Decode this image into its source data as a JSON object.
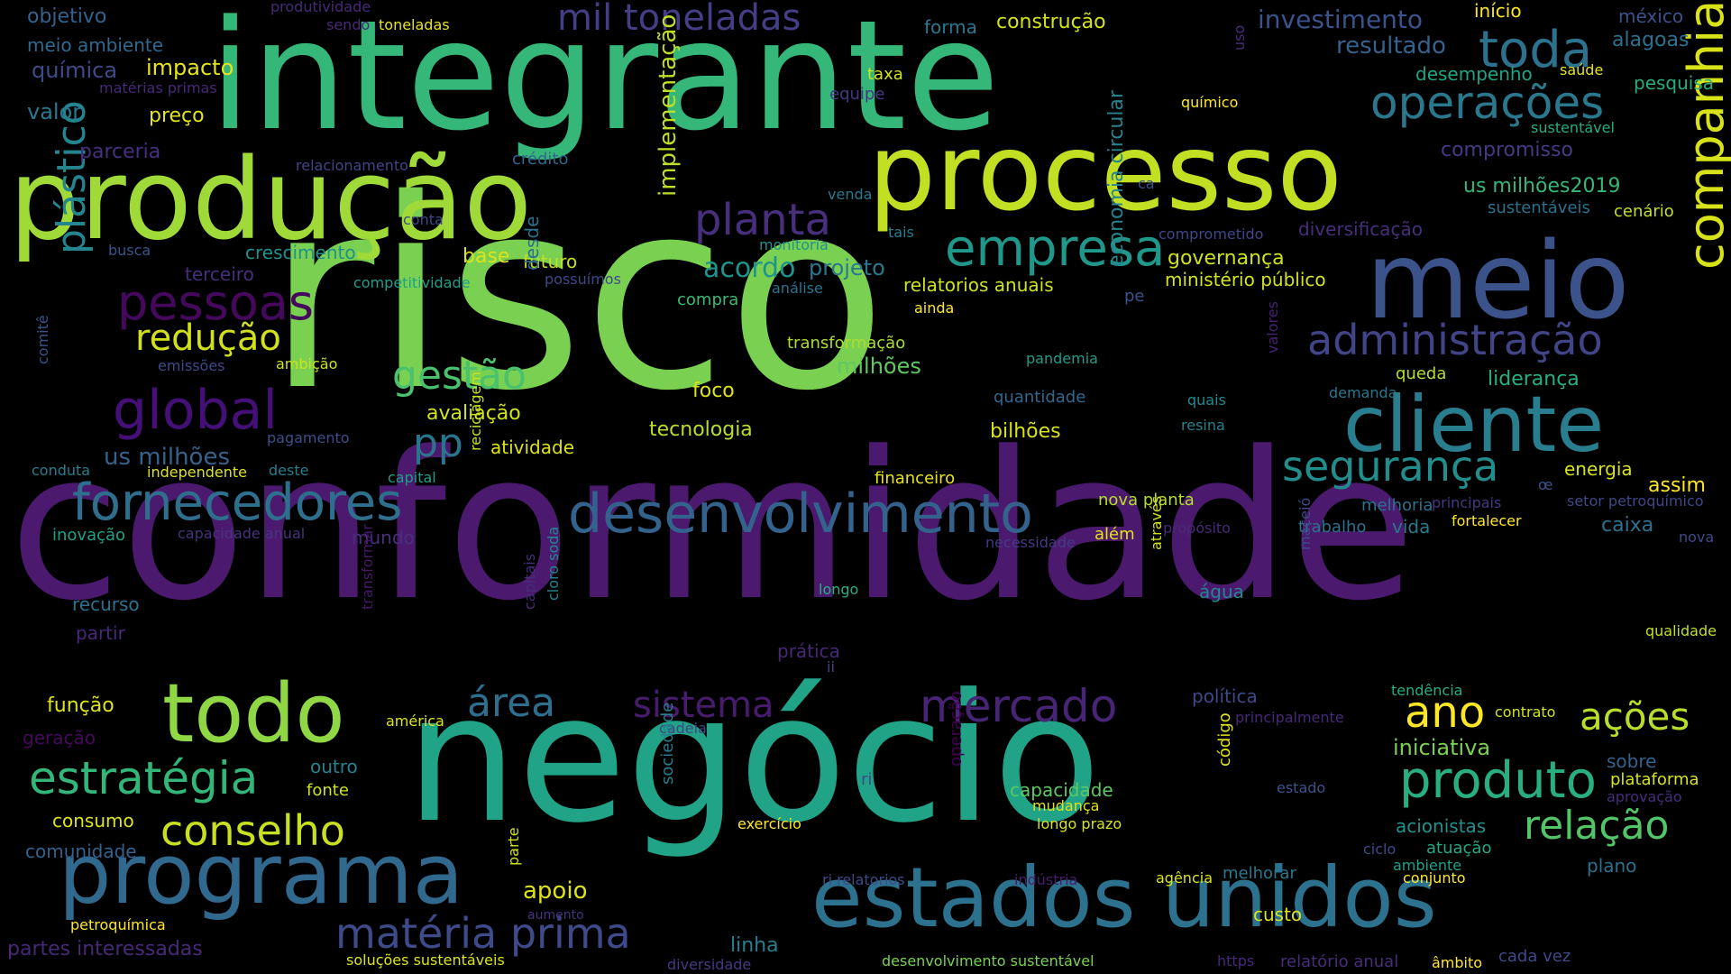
{
  "background": "#000000",
  "palette": [
    "#440154",
    "#482878",
    "#3e4989",
    "#31688e",
    "#26828e",
    "#1f9e89",
    "#35b779",
    "#6ece58",
    "#b5de2b",
    "#fde725"
  ],
  "words": [
    {
      "text": "conformidade",
      "color": "#4b1a6e"
    },
    {
      "text": "risco",
      "color": "#7ad151"
    },
    {
      "text": "negócio",
      "color": "#20a386"
    },
    {
      "text": "integrante",
      "color": "#35b779"
    },
    {
      "text": "produção",
      "color": "#a0da39"
    },
    {
      "text": "processo",
      "color": "#c2df23"
    },
    {
      "text": "estados unidos",
      "color": "#2c728e"
    },
    {
      "text": "meio",
      "color": "#3b528b"
    },
    {
      "text": "programa",
      "color": "#31688e"
    },
    {
      "text": "cliente",
      "color": "#287d8e"
    },
    {
      "text": "todo",
      "color": "#8fd744"
    },
    {
      "text": "desenvolvimento",
      "color": "#33638d"
    },
    {
      "text": "empresa",
      "color": "#1f988b"
    },
    {
      "text": "companhia",
      "color": "#d8e219"
    },
    {
      "text": "fornecedores",
      "color": "#2e6f8e"
    },
    {
      "text": "mercado",
      "color": "#482475"
    },
    {
      "text": "produto",
      "color": "#29af7f"
    },
    {
      "text": "estratégia",
      "color": "#32b67a"
    },
    {
      "text": "conselho",
      "color": "#c8e020"
    },
    {
      "text": "matéria prima",
      "color": "#3e4a89"
    },
    {
      "text": "operações",
      "color": "#2a788e"
    },
    {
      "text": "administração",
      "color": "#414487"
    },
    {
      "text": "segurança",
      "color": "#228d8d"
    },
    {
      "text": "global",
      "color": "#440f76"
    },
    {
      "text": "pessoas",
      "color": "#46085c"
    },
    {
      "text": "toda",
      "color": "#2c728e"
    },
    {
      "text": "planta",
      "color": "#472f7d"
    },
    {
      "text": "mil toneladas",
      "color": "#433e85"
    },
    {
      "text": "plástico",
      "color": "#25858e"
    },
    {
      "text": "redução",
      "color": "#d0e11c"
    },
    {
      "text": "gestão",
      "color": "#4ac16d"
    },
    {
      "text": "sistema",
      "color": "#481b6d"
    },
    {
      "text": "área",
      "color": "#2e6e8e"
    },
    {
      "text": "ano",
      "color": "#fde725"
    },
    {
      "text": "ações",
      "color": "#b8de29"
    },
    {
      "text": "relação",
      "color": "#52c569"
    },
    {
      "text": "pp",
      "color": "#2b748e"
    },
    {
      "text": "investimento",
      "color": "#3b528b"
    },
    {
      "text": "acordo",
      "color": "#1f948c"
    },
    {
      "text": "projeto",
      "color": "#2a788e"
    },
    {
      "text": "implementação",
      "color": "#bddf26"
    },
    {
      "text": "resultado",
      "color": "#34618d"
    },
    {
      "text": "apoio",
      "color": "#dde318"
    },
    {
      "text": "linha",
      "color": "#287d8e"
    },
    {
      "text": "iniciativa",
      "color": "#7ad151"
    },
    {
      "text": "objetivo",
      "color": "#33638d"
    },
    {
      "text": "meio ambiente",
      "color": "#31688e"
    },
    {
      "text": "química",
      "color": "#3e4a89"
    },
    {
      "text": "valor",
      "color": "#2a778e"
    },
    {
      "text": "impacto",
      "color": "#e5e419"
    },
    {
      "text": "preço",
      "color": "#e2e418"
    },
    {
      "text": "matérias primas",
      "color": "#482878"
    },
    {
      "text": "produtividade",
      "color": "#482979"
    },
    {
      "text": "sendo",
      "color": "#482878"
    },
    {
      "text": "toneladas",
      "color": "#e7e419"
    },
    {
      "text": "forma",
      "color": "#2a778e"
    },
    {
      "text": "construção",
      "color": "#d5e21a"
    },
    {
      "text": "início",
      "color": "#fde725"
    },
    {
      "text": "méxico",
      "color": "#3b528b"
    },
    {
      "text": "alagoas",
      "color": "#2c718e"
    },
    {
      "text": "pesquisa",
      "color": "#29af7f"
    },
    {
      "text": "desempenho",
      "color": "#20a486"
    },
    {
      "text": "saúde",
      "color": "#e5e419"
    },
    {
      "text": "uso",
      "color": "#472d7b"
    },
    {
      "text": "taxa",
      "color": "#d2e21b"
    },
    {
      "text": "equipe",
      "color": "#443983"
    },
    {
      "text": "químico",
      "color": "#fde725"
    },
    {
      "text": "sustentável",
      "color": "#27ad81"
    },
    {
      "text": "compromisso",
      "color": "#443a83"
    },
    {
      "text": "parceria",
      "color": "#472f7d"
    },
    {
      "text": "relacionamento",
      "color": "#414487"
    },
    {
      "text": "crédito",
      "color": "#31688e"
    },
    {
      "text": "conta",
      "color": "#3e4a89"
    },
    {
      "text": "busca",
      "color": "#3a548c"
    },
    {
      "text": "crescimento",
      "color": "#21908d"
    },
    {
      "text": "terceiro",
      "color": "#472f7d"
    },
    {
      "text": "competitividade",
      "color": "#1f9e89"
    },
    {
      "text": "venda",
      "color": "#2a788e"
    },
    {
      "text": "ca",
      "color": "#3b528b"
    },
    {
      "text": "tais",
      "color": "#287d8e"
    },
    {
      "text": "monitoria",
      "color": "#21918c"
    },
    {
      "text": "comprometido",
      "color": "#3f4788"
    },
    {
      "text": "diversificação",
      "color": "#472d7b"
    },
    {
      "text": "us milhões2019",
      "color": "#35b779"
    },
    {
      "text": "sustentáveis",
      "color": "#2d708e"
    },
    {
      "text": "cenário",
      "color": "#c0df25"
    },
    {
      "text": "base",
      "color": "#dde318"
    },
    {
      "text": "futuro",
      "color": "#c2df23"
    },
    {
      "text": "possuímos",
      "color": "#3e4989"
    },
    {
      "text": "governança",
      "color": "#cde11d"
    },
    {
      "text": "ministério público",
      "color": "#d2e21b"
    },
    {
      "text": "compra",
      "color": "#3aba76"
    },
    {
      "text": "análise",
      "color": "#2c728e"
    },
    {
      "text": "relatorios anuais",
      "color": "#cde11d"
    },
    {
      "text": "ainda",
      "color": "#fde725"
    },
    {
      "text": "pe",
      "color": "#3b528b"
    },
    {
      "text": "desde",
      "color": "#2d708e"
    },
    {
      "text": "economia circular",
      "color": "#25848e"
    },
    {
      "text": "transformação",
      "color": "#addc30"
    },
    {
      "text": "pandemia",
      "color": "#1e9b8a"
    },
    {
      "text": "milhões",
      "color": "#5ec962"
    },
    {
      "text": "ambição",
      "color": "#cde11d"
    },
    {
      "text": "emissões",
      "color": "#3e4989"
    },
    {
      "text": "comitê",
      "color": "#3b528b"
    },
    {
      "text": "quantidade",
      "color": "#31688e"
    },
    {
      "text": "valores",
      "color": "#482173"
    },
    {
      "text": "quais",
      "color": "#23898e"
    },
    {
      "text": "demanda",
      "color": "#2a788e"
    },
    {
      "text": "queda",
      "color": "#b5de2b"
    },
    {
      "text": "liderança",
      "color": "#2ab07f"
    },
    {
      "text": "foco",
      "color": "#dde318"
    },
    {
      "text": "avaliação",
      "color": "#d2e21b"
    },
    {
      "text": "tecnologia",
      "color": "#b8de29"
    },
    {
      "text": "resina",
      "color": "#26828e"
    },
    {
      "text": "bilhões",
      "color": "#d8e219"
    },
    {
      "text": "us milhões",
      "color": "#33638d"
    },
    {
      "text": "pagamento",
      "color": "#3d4e8a"
    },
    {
      "text": "atividade",
      "color": "#dde318"
    },
    {
      "text": "independente",
      "color": "#dde318"
    },
    {
      "text": "deste",
      "color": "#287d8e"
    },
    {
      "text": "capital",
      "color": "#1fa088"
    },
    {
      "text": "conduta",
      "color": "#287d8e"
    },
    {
      "text": "reciclagem",
      "color": "#c8e020"
    },
    {
      "text": "financeiro",
      "color": "#e7e419"
    },
    {
      "text": "energia",
      "color": "#d8e219"
    },
    {
      "text": "assim",
      "color": "#fde725"
    },
    {
      "text": "œ",
      "color": "#3b528b"
    },
    {
      "text": "principais",
      "color": "#453781"
    },
    {
      "text": "setor petroquímico",
      "color": "#3f4788"
    },
    {
      "text": "melhoria",
      "color": "#2c728e"
    },
    {
      "text": "caixa",
      "color": "#2c728e"
    },
    {
      "text": "trabalho",
      "color": "#2c728e"
    },
    {
      "text": "vida",
      "color": "#2a788e"
    },
    {
      "text": "fortalecer",
      "color": "#fde725"
    },
    {
      "text": "nova planta",
      "color": "#b5de2b"
    },
    {
      "text": "além",
      "color": "#e2e418"
    },
    {
      "text": "propósito",
      "color": "#482878"
    },
    {
      "text": "nova",
      "color": "#3e4a89"
    },
    {
      "text": "necessidade",
      "color": "#443983"
    },
    {
      "text": "inovação",
      "color": "#1fa187"
    },
    {
      "text": "capacidade anual",
      "color": "#46327e"
    },
    {
      "text": "mundo",
      "color": "#472f7d"
    },
    {
      "text": "recurso",
      "color": "#2c718e"
    },
    {
      "text": "partir",
      "color": "#482878"
    },
    {
      "text": "longo",
      "color": "#29af7f"
    },
    {
      "text": "através",
      "color": "#d2e21b"
    },
    {
      "text": "água",
      "color": "#24868e"
    },
    {
      "text": "maceió",
      "color": "#3e4989"
    },
    {
      "text": "capitais",
      "color": "#472d7b"
    },
    {
      "text": "cloro soda",
      "color": "#24868e"
    },
    {
      "text": "transformar",
      "color": "#481769"
    },
    {
      "text": "prática",
      "color": "#482878"
    },
    {
      "text": "ii",
      "color": "#414487"
    },
    {
      "text": "qualidade",
      "color": "#c2df23"
    },
    {
      "text": "tendência",
      "color": "#26ad81"
    },
    {
      "text": "função",
      "color": "#dde318"
    },
    {
      "text": "américa",
      "color": "#dde318"
    },
    {
      "text": "cadeia",
      "color": "#414487"
    },
    {
      "text": "política",
      "color": "#3e4989"
    },
    {
      "text": "contrato",
      "color": "#d2e21b"
    },
    {
      "text": "geração",
      "color": "#46085c"
    },
    {
      "text": "principalmente",
      "color": "#482878"
    },
    {
      "text": "outro",
      "color": "#26828e"
    },
    {
      "text": "fonte",
      "color": "#cde11d"
    },
    {
      "text": "ri",
      "color": "#3e4989"
    },
    {
      "text": "operação",
      "color": "#440154"
    },
    {
      "text": "capacidade",
      "color": "#5ec962"
    },
    {
      "text": "mudança",
      "color": "#dde318"
    },
    {
      "text": "longo prazo",
      "color": "#d8e219"
    },
    {
      "text": "código",
      "color": "#dde318"
    },
    {
      "text": "estado",
      "color": "#3b528b"
    },
    {
      "text": "sobre",
      "color": "#33638d"
    },
    {
      "text": "plataforma",
      "color": "#d5e21a"
    },
    {
      "text": "aprovação",
      "color": "#472d7b"
    },
    {
      "text": "consumo",
      "color": "#dde318"
    },
    {
      "text": "comunidade",
      "color": "#33638d"
    },
    {
      "text": "sociedade",
      "color": "#287d8e"
    },
    {
      "text": "exercício",
      "color": "#fde725"
    },
    {
      "text": "acionistas",
      "color": "#21918c"
    },
    {
      "text": "atuação",
      "color": "#22a884"
    },
    {
      "text": "ciclo",
      "color": "#3e4989"
    },
    {
      "text": "ambiente",
      "color": "#1fa088"
    },
    {
      "text": "plano",
      "color": "#2d708e"
    },
    {
      "text": "conjunto",
      "color": "#fde725"
    },
    {
      "text": "ri relatorios",
      "color": "#3e4989"
    },
    {
      "text": "indústria",
      "color": "#481b6d"
    },
    {
      "text": "agência",
      "color": "#dde318"
    },
    {
      "text": "melhorar",
      "color": "#2a788e"
    },
    {
      "text": "parte",
      "color": "#d2e21b"
    },
    {
      "text": "aumento",
      "color": "#46327e"
    },
    {
      "text": "petroquímica",
      "color": "#fde725"
    },
    {
      "text": "custo",
      "color": "#dde318"
    },
    {
      "text": "partes interessadas",
      "color": "#482878"
    },
    {
      "text": "soluções sustentáveis",
      "color": "#dde318"
    },
    {
      "text": "diversidade",
      "color": "#443983"
    },
    {
      "text": "desenvolvimento sustentável",
      "color": "#7ad151"
    },
    {
      "text": "https",
      "color": "#482878"
    },
    {
      "text": "relatório anual",
      "color": "#472d7b"
    },
    {
      "text": "âmbito",
      "color": "#fde725"
    },
    {
      "text": "cada vez",
      "color": "#3e4989"
    }
  ]
}
